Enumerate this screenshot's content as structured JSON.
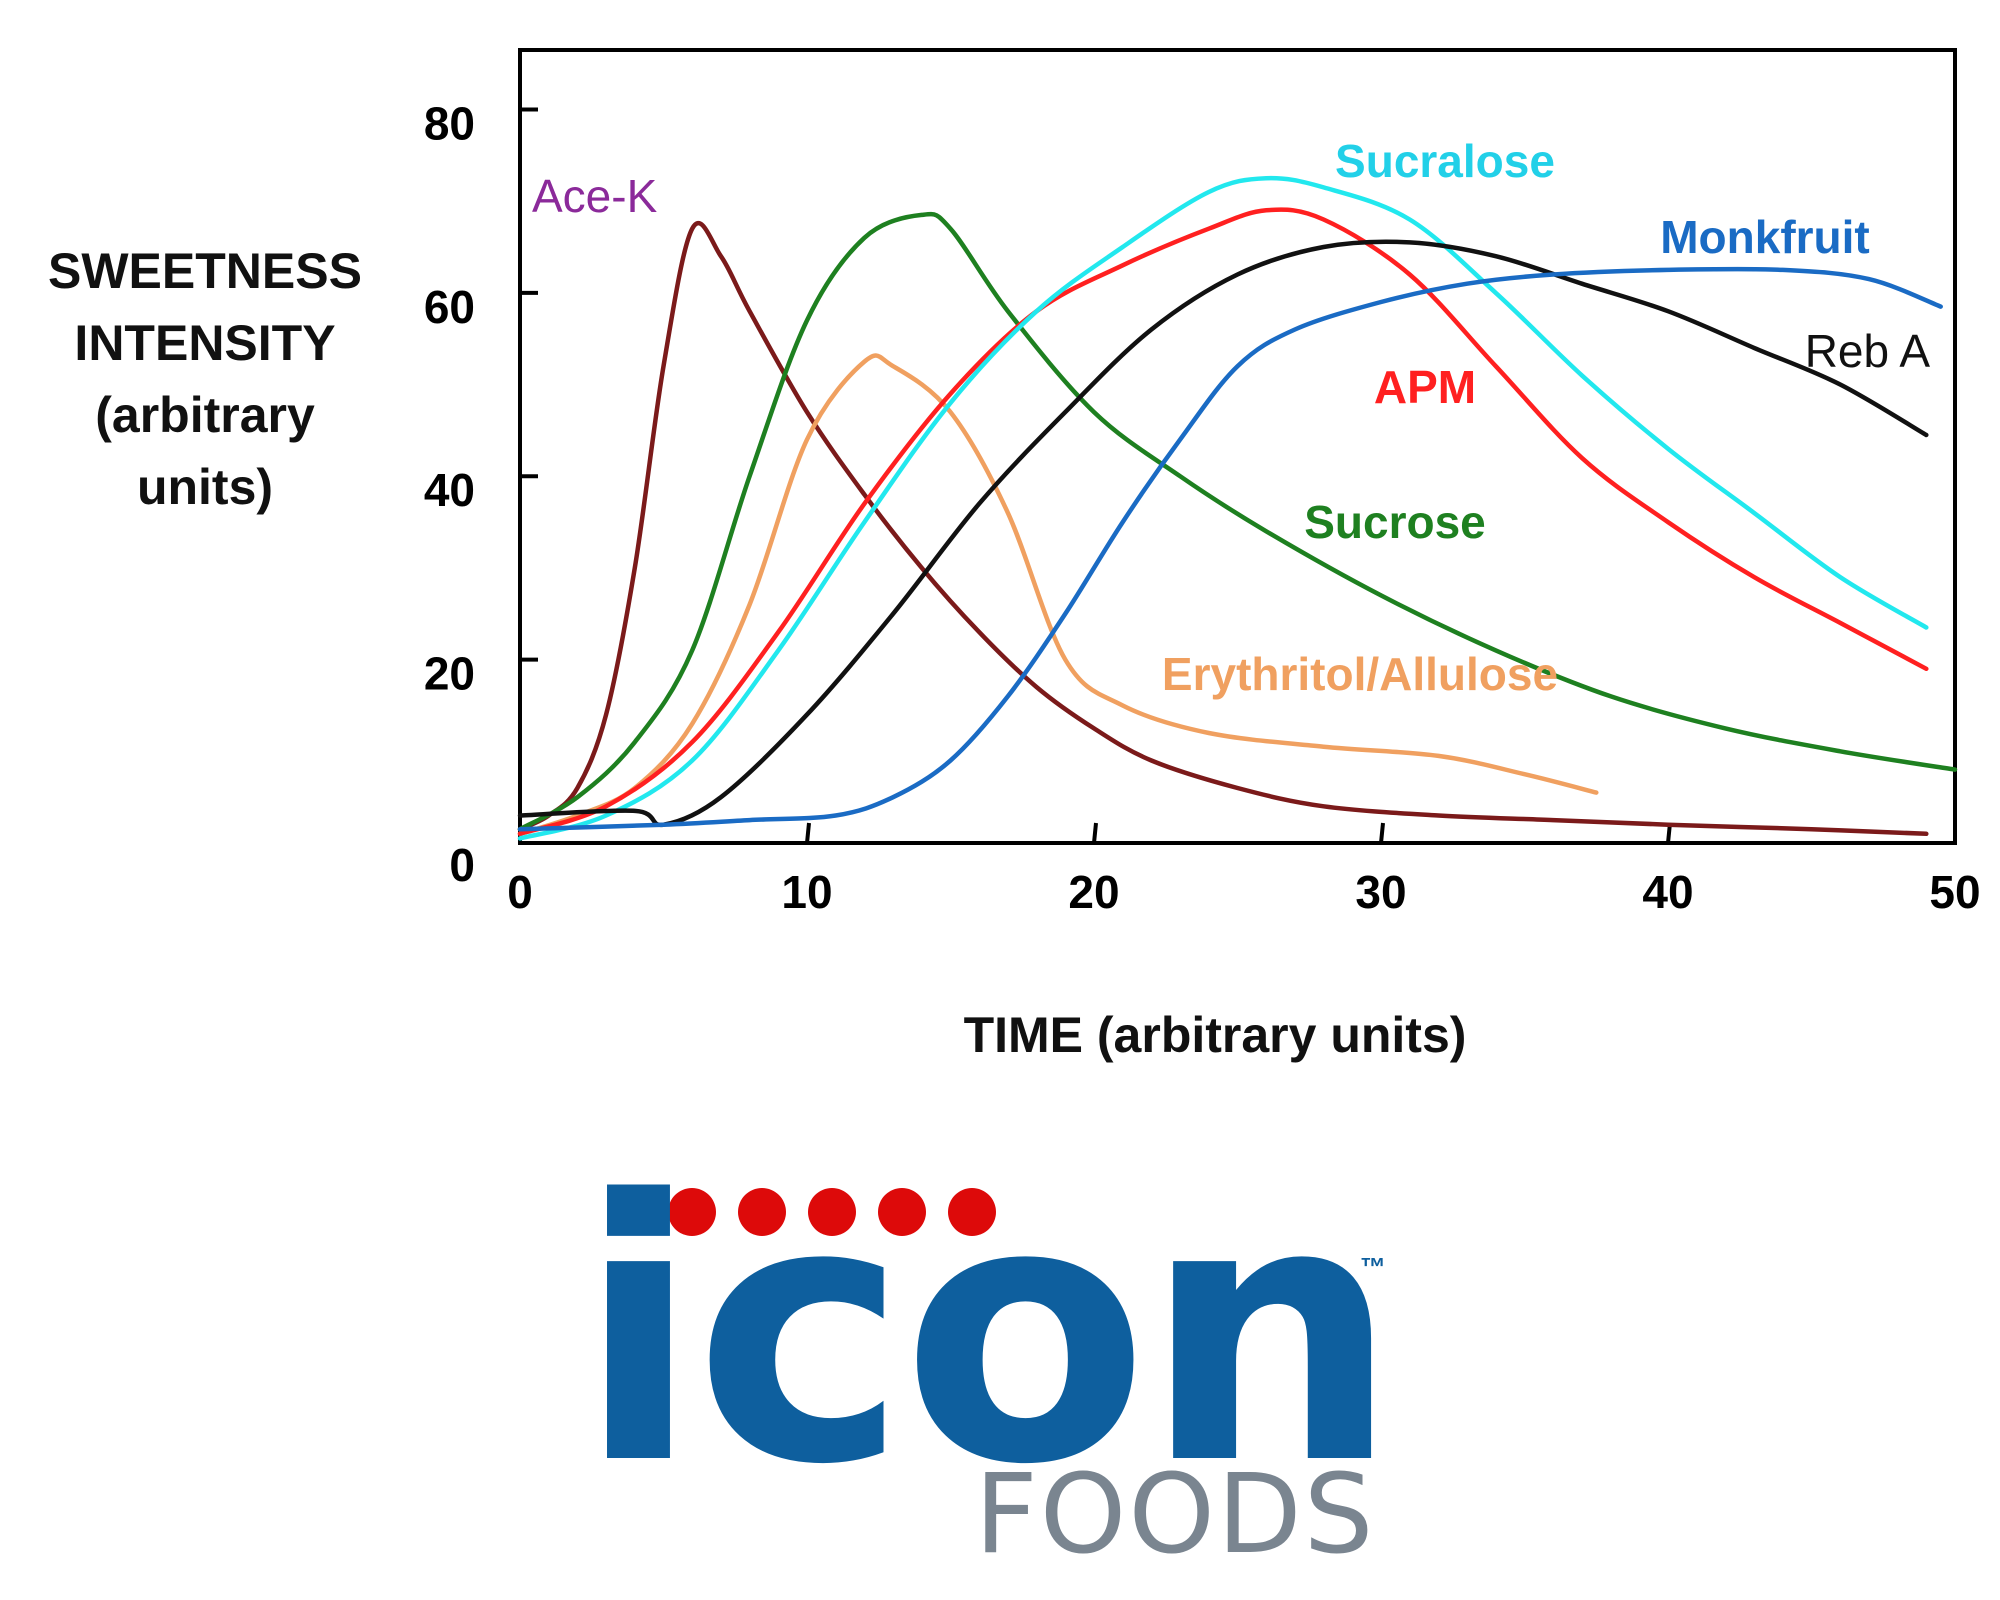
{
  "chart_data": {
    "type": "line",
    "title": "",
    "xlabel": "TIME (arbitrary units)",
    "ylabel_lines": [
      "SWEETNESS",
      "INTENSITY",
      "(arbitrary",
      "units)"
    ],
    "xlim": [
      0,
      50
    ],
    "ylim": [
      0,
      80
    ],
    "xticks": [
      0,
      10,
      20,
      30,
      40,
      50
    ],
    "yticks": [
      0,
      20,
      40,
      60,
      80
    ],
    "grid": false,
    "legend": "inline labels",
    "series": [
      {
        "name": "Ace-K",
        "color": "#7b1a1a",
        "label_color": "#8b2a9a",
        "points": [
          [
            0,
            1.5
          ],
          [
            1,
            3
          ],
          [
            2,
            6
          ],
          [
            3,
            14
          ],
          [
            4,
            30
          ],
          [
            5,
            52
          ],
          [
            6,
            67
          ],
          [
            7,
            64
          ],
          [
            8,
            58
          ],
          [
            10,
            47
          ],
          [
            12,
            38
          ],
          [
            14,
            30
          ],
          [
            16,
            23
          ],
          [
            18,
            17
          ],
          [
            20,
            12.5
          ],
          [
            22,
            9
          ],
          [
            25,
            6
          ],
          [
            28,
            4
          ],
          [
            32,
            3
          ],
          [
            36,
            2.5
          ],
          [
            40,
            2
          ],
          [
            45,
            1.5
          ],
          [
            49,
            1
          ]
        ]
      },
      {
        "name": "Sucrose",
        "color": "#1e8020",
        "label_color": "#1e8020",
        "points": [
          [
            0,
            1.5
          ],
          [
            2,
            5
          ],
          [
            4,
            11
          ],
          [
            6,
            21
          ],
          [
            8,
            40
          ],
          [
            10,
            57
          ],
          [
            12,
            66
          ],
          [
            14,
            68.5
          ],
          [
            15,
            67
          ],
          [
            17,
            58
          ],
          [
            20,
            47
          ],
          [
            23,
            40
          ],
          [
            26,
            34
          ],
          [
            30,
            27
          ],
          [
            34,
            21
          ],
          [
            38,
            16
          ],
          [
            42,
            12.5
          ],
          [
            46,
            10
          ],
          [
            50,
            8
          ]
        ]
      },
      {
        "name": "Erythritol/Allulose",
        "color": "#f0a060",
        "label_color": "#f0a060",
        "points": [
          [
            0,
            1
          ],
          [
            2,
            3
          ],
          [
            4,
            6
          ],
          [
            6,
            13
          ],
          [
            8,
            26
          ],
          [
            10,
            44
          ],
          [
            12,
            52.5
          ],
          [
            13,
            52
          ],
          [
            15,
            47
          ],
          [
            17,
            36
          ],
          [
            19,
            20
          ],
          [
            21,
            15
          ],
          [
            24,
            12
          ],
          [
            28,
            10.5
          ],
          [
            32,
            9.5
          ],
          [
            35,
            7.5
          ],
          [
            37.5,
            5.5
          ]
        ]
      },
      {
        "name": "APM",
        "color": "#ff2020",
        "label_color": "#ff2020",
        "points": [
          [
            0,
            1
          ],
          [
            3,
            4
          ],
          [
            6,
            11
          ],
          [
            9,
            23
          ],
          [
            12,
            37
          ],
          [
            15,
            49
          ],
          [
            18,
            58
          ],
          [
            21,
            63
          ],
          [
            24,
            67
          ],
          [
            26,
            69
          ],
          [
            28,
            68
          ],
          [
            31,
            62
          ],
          [
            34,
            52
          ],
          [
            37,
            42
          ],
          [
            40,
            35
          ],
          [
            43,
            29
          ],
          [
            46,
            24
          ],
          [
            49,
            19
          ]
        ]
      },
      {
        "name": "Sucralose",
        "color": "#22e8ee",
        "label_color": "#22d0e8",
        "points": [
          [
            0,
            0.5
          ],
          [
            3,
            3
          ],
          [
            6,
            9
          ],
          [
            9,
            21
          ],
          [
            12,
            35
          ],
          [
            15,
            48
          ],
          [
            18,
            58
          ],
          [
            21,
            65
          ],
          [
            24,
            71
          ],
          [
            26,
            72.5
          ],
          [
            28,
            71.5
          ],
          [
            31,
            68
          ],
          [
            34,
            60
          ],
          [
            37,
            51
          ],
          [
            40,
            43
          ],
          [
            43,
            36
          ],
          [
            46,
            29
          ],
          [
            49,
            23.5
          ]
        ]
      },
      {
        "name": "Reb A",
        "color": "#111111",
        "label_color": "#111111",
        "points": [
          [
            0,
            3
          ],
          [
            4,
            3.5
          ],
          [
            5,
            2
          ],
          [
            7,
            5
          ],
          [
            10,
            14
          ],
          [
            13,
            25
          ],
          [
            16,
            37
          ],
          [
            19,
            47
          ],
          [
            22,
            56
          ],
          [
            25,
            62
          ],
          [
            28,
            65
          ],
          [
            31,
            65.5
          ],
          [
            34,
            64
          ],
          [
            37,
            61
          ],
          [
            40,
            58
          ],
          [
            43,
            54
          ],
          [
            46,
            50
          ],
          [
            49,
            44.5
          ]
        ]
      },
      {
        "name": "Monkfruit",
        "color": "#1a6bc4",
        "label_color": "#1a6bc4",
        "points": [
          [
            0,
            1.5
          ],
          [
            5,
            2
          ],
          [
            8,
            2.5
          ],
          [
            11,
            3
          ],
          [
            13,
            5
          ],
          [
            15,
            9
          ],
          [
            17,
            16
          ],
          [
            19,
            25
          ],
          [
            21,
            35
          ],
          [
            23,
            44
          ],
          [
            25,
            52
          ],
          [
            27,
            56
          ],
          [
            30,
            59
          ],
          [
            33,
            61
          ],
          [
            36,
            62
          ],
          [
            40,
            62.5
          ],
          [
            44,
            62.5
          ],
          [
            47,
            61.5
          ],
          [
            49.5,
            58.5
          ]
        ]
      }
    ]
  },
  "logo": {
    "wordmark": "icon",
    "subtitle": "FOODS",
    "trademark": "™",
    "dot_color": "#dd0a0a",
    "word_color": "#0e5f9e",
    "subtitle_color": "#7a8590"
  }
}
